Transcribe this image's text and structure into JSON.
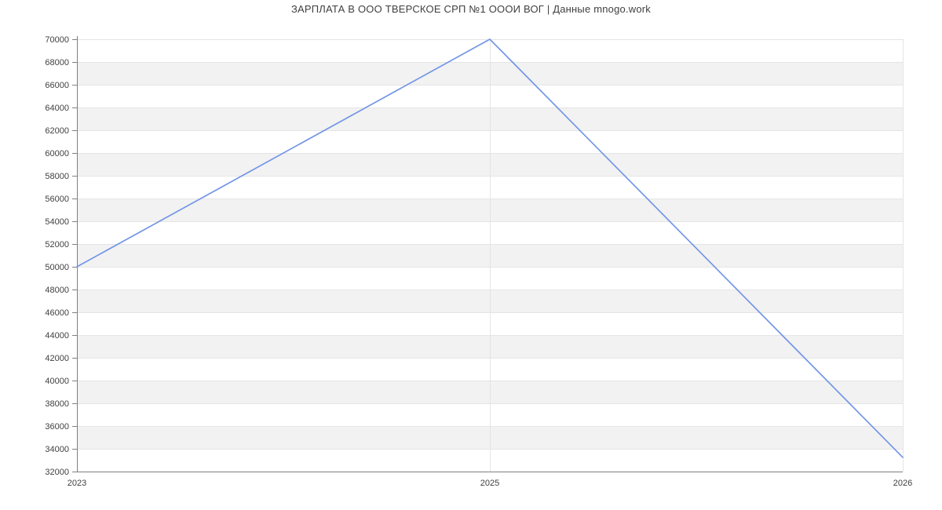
{
  "page": {
    "background": "#ffffff"
  },
  "chart_data": {
    "type": "line",
    "title": "ЗАРПЛАТА В ООО ТВЕРСКОЕ СРП №1 ОООИ ВОГ | Данные mnogo.work",
    "categories": [
      "2023",
      "2025",
      "2026"
    ],
    "values": [
      50000,
      70000,
      33250
    ],
    "xlabel": "",
    "ylabel": "",
    "ylim": [
      32000,
      70000
    ],
    "ytick_step": 2000,
    "yticks": [
      32000,
      34000,
      36000,
      38000,
      40000,
      42000,
      44000,
      46000,
      48000,
      50000,
      52000,
      54000,
      56000,
      58000,
      60000,
      62000,
      64000,
      66000,
      68000,
      70000
    ],
    "legend": "none",
    "grid": {
      "horizontal_gridlines": true,
      "vertical_gridlines_at_categories": true,
      "alternating_row_bands": true
    },
    "colors": {
      "line": "#7396e6",
      "band": "#f2f2f2",
      "gridline": "#e5e5e5",
      "axis": "#808080",
      "tick_text": "#3f3f3f",
      "title_text": "#3f3f3f"
    }
  }
}
